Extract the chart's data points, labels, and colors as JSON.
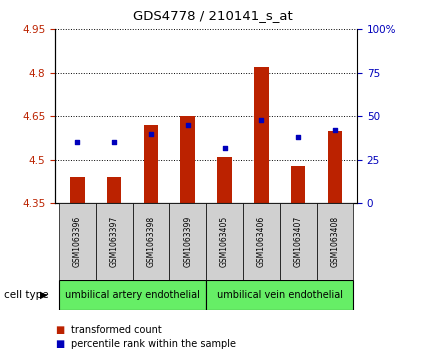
{
  "title": "GDS4778 / 210141_s_at",
  "samples": [
    "GSM1063396",
    "GSM1063397",
    "GSM1063398",
    "GSM1063399",
    "GSM1063405",
    "GSM1063406",
    "GSM1063407",
    "GSM1063408"
  ],
  "transformed_count": [
    4.44,
    4.44,
    4.62,
    4.65,
    4.51,
    4.82,
    4.48,
    4.6
  ],
  "percentile_rank": [
    35,
    35,
    40,
    45,
    32,
    48,
    38,
    42
  ],
  "ylim_left": [
    4.35,
    4.95
  ],
  "ylim_right": [
    0,
    100
  ],
  "yticks_left": [
    4.35,
    4.5,
    4.65,
    4.8,
    4.95
  ],
  "yticks_right": [
    0,
    25,
    50,
    75,
    100
  ],
  "ytick_labels_left": [
    "4.35",
    "4.5",
    "4.65",
    "4.8",
    "4.95"
  ],
  "ytick_labels_right": [
    "0",
    "25",
    "50",
    "75",
    "100%"
  ],
  "bar_color": "#bb2200",
  "marker_color": "#0000bb",
  "bar_bottom": 4.35,
  "cell_types": [
    "umbilical artery endothelial",
    "umbilical vein endothelial"
  ],
  "plot_bg": "#ffffff",
  "legend_bar_label": "transformed count",
  "legend_marker_label": "percentile rank within the sample",
  "cell_type_label": "cell type",
  "sample_box_color": "#d0d0d0",
  "green_color": "#66ee66",
  "bar_width": 0.4
}
